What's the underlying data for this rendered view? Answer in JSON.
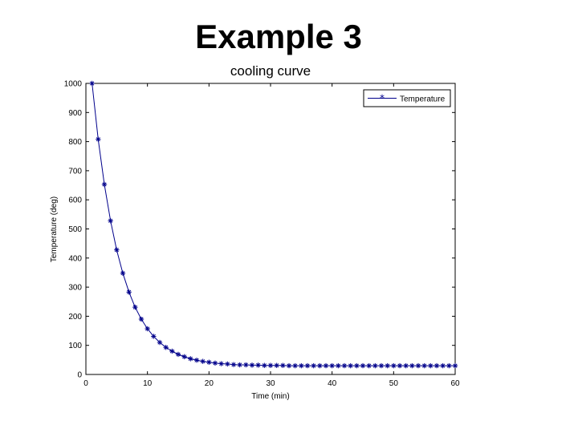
{
  "slide": {
    "title": "Example 3"
  },
  "chart_data": {
    "type": "line",
    "title": "cooling curve",
    "xlabel": "Time (min)",
    "ylabel": "Temperature (deg)",
    "xlim": [
      0,
      60
    ],
    "ylim": [
      0,
      1000
    ],
    "xticks": [
      0,
      10,
      20,
      30,
      40,
      50,
      60
    ],
    "yticks": [
      0,
      100,
      200,
      300,
      400,
      500,
      600,
      700,
      800,
      900,
      1000
    ],
    "grid": false,
    "legend_position": "top-right",
    "series": [
      {
        "name": "Temperature",
        "color": "#00008B",
        "marker": "*",
        "x": [
          1,
          2,
          3,
          4,
          5,
          6,
          7,
          8,
          9,
          10,
          11,
          12,
          13,
          14,
          15,
          16,
          17,
          18,
          19,
          20,
          21,
          22,
          23,
          24,
          25,
          26,
          27,
          28,
          29,
          30,
          31,
          32,
          33,
          34,
          35,
          36,
          37,
          38,
          39,
          40,
          41,
          42,
          43,
          44,
          45,
          46,
          47,
          48,
          49,
          50,
          51,
          52,
          53,
          54,
          55,
          56,
          57,
          58,
          59,
          60
        ],
        "y": [
          1000,
          808,
          653,
          528,
          428,
          348,
          283,
          231,
          190,
          157,
          131,
          110,
          93,
          80,
          69,
          61,
          54,
          49,
          45,
          42,
          39,
          37,
          36,
          34,
          33,
          33,
          32,
          32,
          31,
          31,
          31,
          31,
          30,
          30,
          30,
          30,
          30,
          30,
          30,
          30,
          30,
          30,
          30,
          30,
          30,
          30,
          30,
          30,
          30,
          30,
          30,
          30,
          30,
          30,
          30,
          30,
          30,
          30,
          30,
          30
        ]
      }
    ]
  }
}
